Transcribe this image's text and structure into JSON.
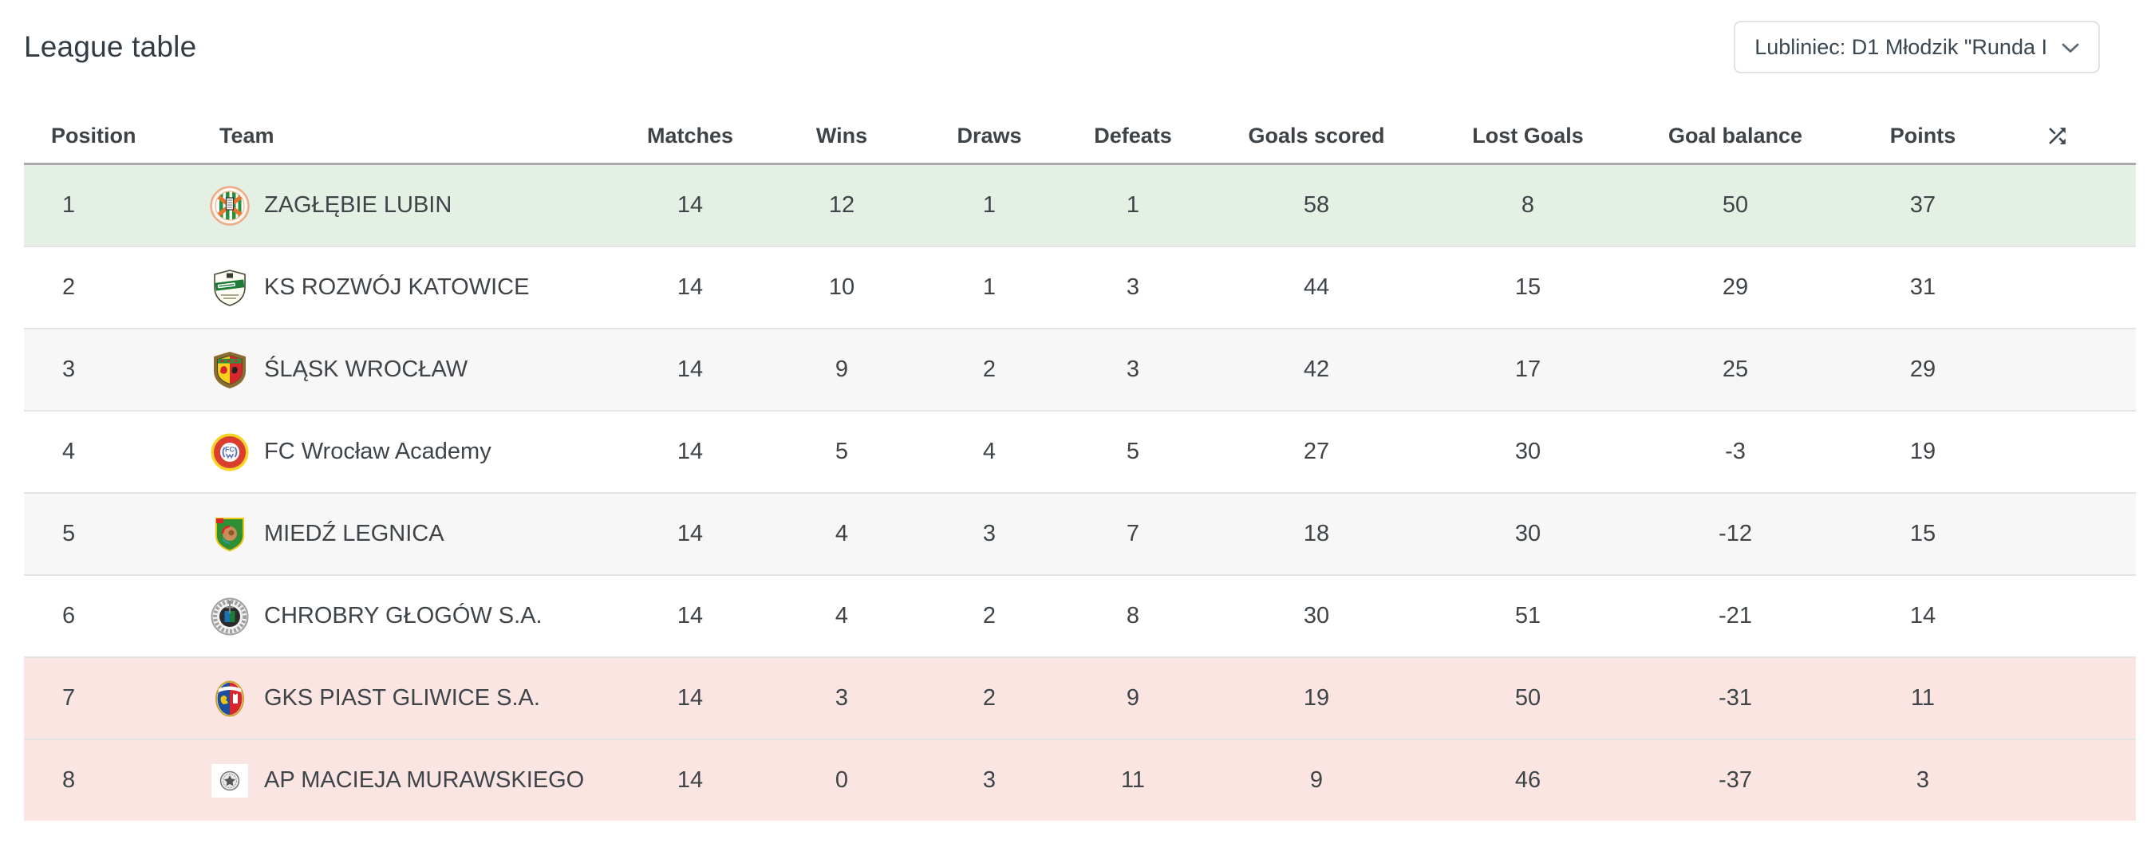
{
  "page": {
    "title": "League table"
  },
  "league_filter": {
    "value": "Lubliniec: D1 Młodzik \"Runda I",
    "icon": "chevron-down-icon"
  },
  "table": {
    "headers": [
      "Position",
      "Team",
      "Matches",
      "Wins",
      "Draws",
      "Defeats",
      "Goals scored",
      "Lost Goals",
      "Goal balance",
      "Points"
    ],
    "sort_icon": "shuffle-icon",
    "colors": {
      "promotion_bg": "#e5f0e5",
      "relegation_bg": "#fae5e2",
      "stripe_bg": "#f7f7f7",
      "row_border": "#e3e3e3",
      "header_border": "#a9a9a9"
    },
    "rows": [
      {
        "position": "1",
        "team": "ZAGŁĘBIE LUBIN",
        "matches": "14",
        "wins": "12",
        "draws": "1",
        "defeats": "1",
        "goals_scored": "58",
        "lost_goals": "8",
        "goal_balance": "50",
        "points": "37",
        "highlight": "promotion",
        "logo": {
          "name": "zaglebie-lubin-crest-icon",
          "type": "circle-stripes",
          "colors": [
            "#edaa84",
            "#27903b",
            "#e8752e"
          ]
        }
      },
      {
        "position": "2",
        "team": "KS ROZWÓJ KATOWICE",
        "matches": "14",
        "wins": "10",
        "draws": "1",
        "defeats": "3",
        "goals_scored": "44",
        "lost_goals": "15",
        "goal_balance": "29",
        "points": "31",
        "highlight": null,
        "logo": {
          "name": "ks-rozwoj-katowice-crest-icon",
          "type": "shield-band",
          "colors": [
            "#fcfcf5",
            "#1c7d36",
            "#4a4a38"
          ]
        }
      },
      {
        "position": "3",
        "team": "ŚLĄSK WROCŁAW",
        "matches": "14",
        "wins": "9",
        "draws": "2",
        "defeats": "3",
        "goals_scored": "42",
        "lost_goals": "17",
        "goal_balance": "25",
        "points": "29",
        "highlight": null,
        "logo": {
          "name": "slask-wroclaw-crest-icon",
          "type": "shield-wreath",
          "colors": [
            "#8a6d33",
            "#f3d11d",
            "#d8262c",
            "#2f8f3f"
          ]
        }
      },
      {
        "position": "4",
        "team": "FC Wrocław Academy",
        "matches": "14",
        "wins": "5",
        "draws": "4",
        "defeats": "5",
        "goals_scored": "27",
        "lost_goals": "30",
        "goal_balance": "-3",
        "points": "19",
        "highlight": null,
        "logo": {
          "name": "fc-wroclaw-academy-crest-icon",
          "type": "circle-ring",
          "colors": [
            "#f5d327",
            "#da3e2e",
            "#ffffff",
            "#5b6fb5"
          ]
        }
      },
      {
        "position": "5",
        "team": "MIEDŹ LEGNICA",
        "matches": "14",
        "wins": "4",
        "draws": "3",
        "defeats": "7",
        "goals_scored": "18",
        "lost_goals": "30",
        "goal_balance": "-12",
        "points": "15",
        "highlight": null,
        "logo": {
          "name": "miedz-legnica-crest-icon",
          "type": "shield-lion",
          "colors": [
            "#2e8f35",
            "#f1c40f",
            "#c98d5a",
            "#d8262c",
            "#2a9d8f"
          ]
        }
      },
      {
        "position": "6",
        "team": "CHROBRY GŁOGÓW S.A.",
        "matches": "14",
        "wins": "4",
        "draws": "2",
        "defeats": "8",
        "goals_scored": "30",
        "lost_goals": "51",
        "goal_balance": "-21",
        "points": "14",
        "highlight": null,
        "logo": {
          "name": "chrobry-glogow-crest-icon",
          "type": "circle-wreath",
          "colors": [
            "#a0a0a0",
            "#1a72b8",
            "#1c7d36",
            "#2b2b2b"
          ]
        }
      },
      {
        "position": "7",
        "team": "GKS PIAST GLIWICE S.A.",
        "matches": "14",
        "wins": "3",
        "draws": "2",
        "defeats": "9",
        "goals_scored": "19",
        "lost_goals": "50",
        "goal_balance": "-31",
        "points": "11",
        "highlight": "relegation",
        "logo": {
          "name": "gks-piast-gliwice-crest-icon",
          "type": "oval-split",
          "colors": [
            "#1d4f9e",
            "#d8262c",
            "#f1c40f",
            "#c9a227"
          ]
        }
      },
      {
        "position": "8",
        "team": "AP MACIEJA MURAWSKIEGO",
        "matches": "14",
        "wins": "0",
        "draws": "3",
        "defeats": "11",
        "goals_scored": "9",
        "lost_goals": "46",
        "goal_balance": "-37",
        "points": "3",
        "highlight": "relegation",
        "logo": {
          "name": "ap-macieja-murawskiego-crest-icon",
          "type": "circle-mono",
          "colors": [
            "#e9e9e9",
            "#555555"
          ]
        }
      }
    ]
  }
}
